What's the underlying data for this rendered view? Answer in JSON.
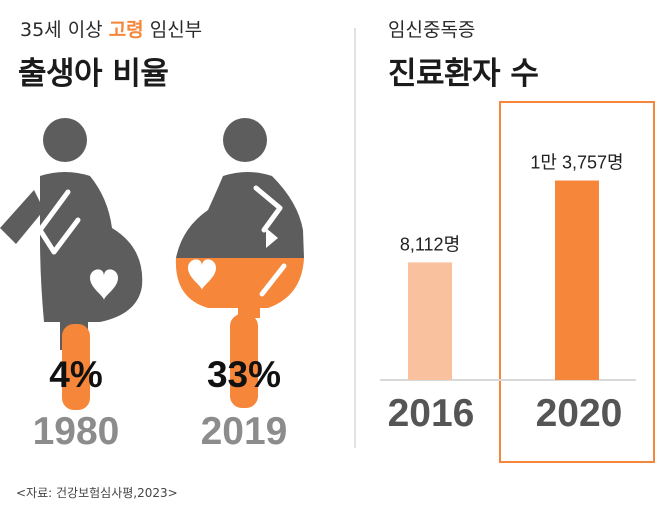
{
  "left": {
    "subtitle_pre": "35세 이상 ",
    "subtitle_hl": "고령",
    "subtitle_post": " 임신부",
    "title": "출생아 비율",
    "items": [
      {
        "year": "1980",
        "pct_label": "4%",
        "value": 4
      },
      {
        "year": "2019",
        "pct_label": "33%",
        "value": 33
      }
    ]
  },
  "right": {
    "subtitle": "임신중독증",
    "title": "진료환자 수"
  },
  "chart_data": {
    "type": "bar",
    "categories": [
      "2016",
      "2020"
    ],
    "values": [
      8112,
      13757
    ],
    "data_labels": [
      "8,112명",
      "1만 3,757명"
    ],
    "bar_colors": [
      "#f9c19e",
      "#f5863a"
    ],
    "ylim": [
      0,
      16000
    ],
    "highlight": "2020"
  },
  "source": "<자료: 건강보험심사평,2023>",
  "colors": {
    "accent": "#f5863a",
    "accent_light": "#f9c19e",
    "figure_gray": "#5d5d5d",
    "year_gray": "#8c8c8c"
  },
  "icons": [
    "pregnant-woman-icon",
    "heart-icon"
  ]
}
